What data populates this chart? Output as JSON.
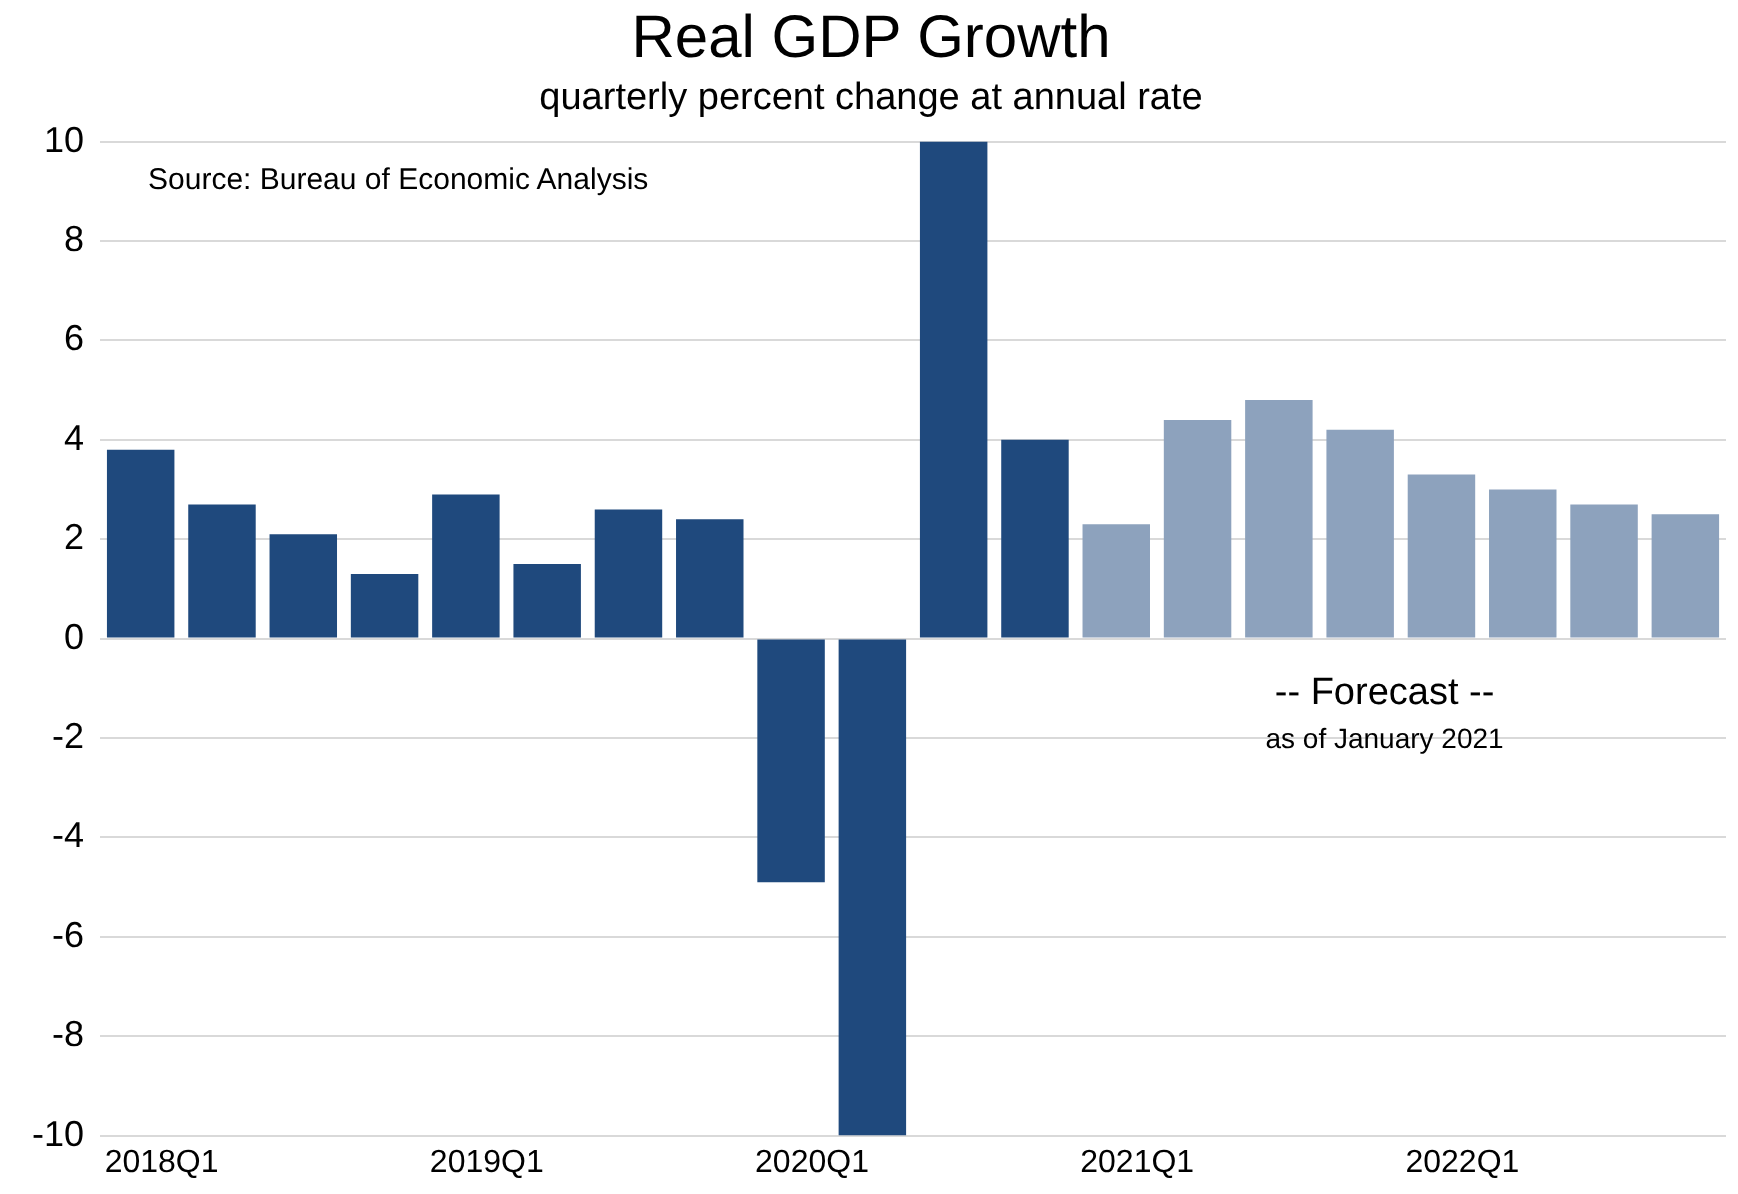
{
  "chart_data": {
    "type": "bar",
    "title": "Real GDP Growth",
    "subtitle": "quarterly percent change at annual rate",
    "categories": [
      "2018Q1",
      null,
      null,
      null,
      "2019Q1",
      null,
      null,
      null,
      "2020Q1",
      null,
      null,
      null,
      "2021Q1",
      null,
      null,
      null,
      "2022Q1",
      null,
      null,
      null
    ],
    "series": [
      {
        "color": "#1f497d",
        "values": [
          3.8,
          2.7,
          2.1,
          1.3,
          2.9,
          1.5,
          2.6,
          2.4,
          -4.9,
          -10,
          10,
          4.0,
          null,
          null,
          null,
          null,
          null,
          null,
          null,
          null
        ]
      },
      {
        "color": "#8da2bd",
        "values": [
          null,
          null,
          null,
          null,
          null,
          null,
          null,
          null,
          null,
          null,
          null,
          null,
          2.3,
          4.4,
          4.8,
          4.2,
          3.3,
          3.0,
          2.7,
          2.5
        ]
      }
    ],
    "stacked": true,
    "ylim": [
      -10,
      10
    ],
    "yticks": [
      -10,
      -8,
      -6,
      -4,
      -2,
      0,
      2,
      4,
      6,
      8,
      10
    ],
    "grid": "y",
    "legend": false,
    "annotations": [
      "Source: Bureau of Economic Analysis",
      "-- Forecast --",
      "as of January 2021"
    ]
  }
}
